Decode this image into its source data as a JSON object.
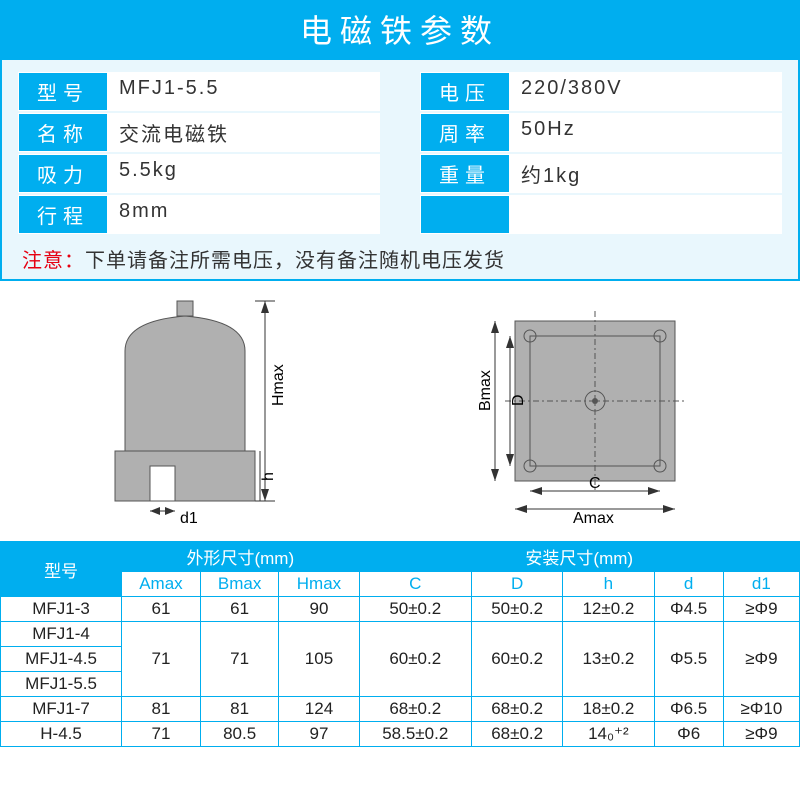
{
  "title": "电磁铁参数",
  "params": {
    "left": [
      {
        "label": "型号",
        "value": "MFJ1-5.5"
      },
      {
        "label": "名称",
        "value": "交流电磁铁"
      },
      {
        "label": "吸力",
        "value": "5.5kg"
      },
      {
        "label": "行程",
        "value": "8mm"
      }
    ],
    "right": [
      {
        "label": "电压",
        "value": "220/380V"
      },
      {
        "label": "周率",
        "value": "50Hz"
      },
      {
        "label": "重量",
        "value": "约1kg"
      },
      {
        "label": "",
        "value": ""
      }
    ]
  },
  "notice": {
    "label": "注意：",
    "text": "下单请备注所需电压，没有备注随机电压发货"
  },
  "diag": {
    "front": {
      "Hmax": "Hmax",
      "h": "h",
      "d1": "d1"
    },
    "top": {
      "Amax": "Amax",
      "Bmax": "Bmax",
      "C": "C",
      "D": "D"
    }
  },
  "table": {
    "h_model": "型号",
    "h_outer": "外形尺寸(mm)",
    "h_mount": "安装尺寸(mm)",
    "sub": [
      "Amax",
      "Bmax",
      "Hmax",
      "C",
      "D",
      "h",
      "d",
      "d1"
    ],
    "rows": [
      {
        "m": "MFJ1-3",
        "Amax": "61",
        "Bmax": "61",
        "Hmax": "90",
        "C": "50±0.2",
        "D": "50±0.2",
        "h": "12±0.2",
        "d": "Φ4.5",
        "d1": "≥Φ9"
      },
      {
        "m": "MFJ1-4",
        "group": true
      },
      {
        "m": "MFJ1-4.5",
        "Amax": "71",
        "Bmax": "71",
        "Hmax": "105",
        "C": "60±0.2",
        "D": "60±0.2",
        "h": "13±0.2",
        "d": "Φ5.5",
        "d1": "≥Φ9",
        "rs": 3
      },
      {
        "m": "MFJ1-5.5",
        "group": true
      },
      {
        "m": "MFJ1-7",
        "Amax": "81",
        "Bmax": "81",
        "Hmax": "124",
        "C": "68±0.2",
        "D": "68±0.2",
        "h": "18±0.2",
        "d": "Φ6.5",
        "d1": "≥Φ10"
      },
      {
        "m": "H-4.5",
        "Amax": "71",
        "Bmax": "80.5",
        "Hmax": "97",
        "C": "58.5±0.2",
        "D": "68±0.2",
        "h": "14₀⁺²",
        "d": "Φ6",
        "d1": "≥Φ9"
      }
    ]
  },
  "colors": {
    "brand": "#00aeef",
    "red": "#e60012",
    "gray": "#b0b0b0",
    "dgray": "#6f6f6f"
  }
}
